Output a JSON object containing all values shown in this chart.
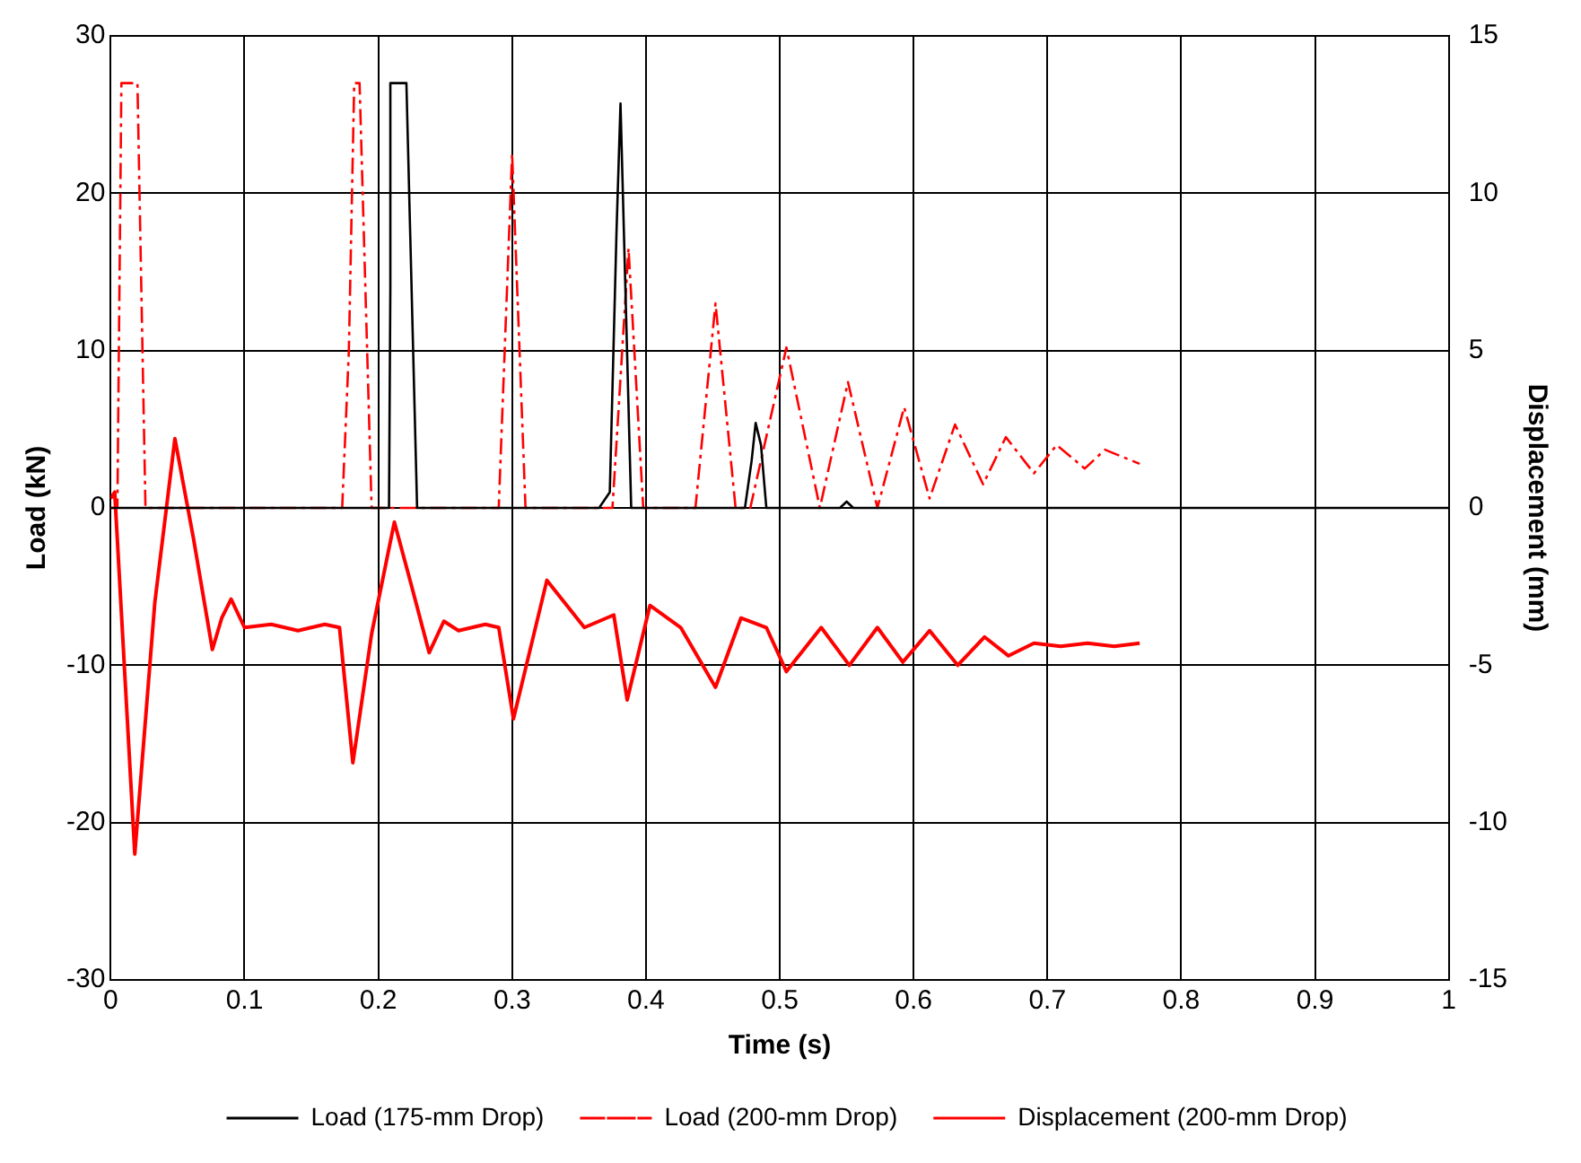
{
  "chart_data": {
    "type": "line",
    "xlabel": "Time (s)",
    "ylabel": "Load (kN)",
    "y2label": "Displacement (mm)",
    "xlim": [
      0,
      1
    ],
    "xticks": [
      0,
      0.1,
      0.2,
      0.3,
      0.4,
      0.5,
      0.6,
      0.7,
      0.8,
      0.9,
      1
    ],
    "ylim": [
      -30,
      30
    ],
    "yticks": [
      -30,
      -20,
      -10,
      0,
      10,
      20,
      30
    ],
    "y2lim": [
      -15,
      15
    ],
    "y2ticks": [
      -15,
      -10,
      -5,
      0,
      5,
      10,
      15
    ],
    "grid": true,
    "legend": "bottom",
    "marker": "none",
    "series": [
      {
        "name": "Load (175-mm Drop)",
        "color": "#000000",
        "line_style": "solid",
        "x": [
          0,
          0.1,
          0.2,
          0.208,
          0.209,
          0.209,
          0.211,
          0.221,
          0.229,
          0.3,
          0.365,
          0.373,
          0.378,
          0.378,
          0.381,
          0.389,
          0.45,
          0.474,
          0.479,
          0.482,
          0.486,
          0.49,
          0.545,
          0.55,
          0.555,
          0.7,
          1
        ],
        "values": [
          0,
          0,
          0,
          0,
          14,
          27,
          27,
          27,
          0,
          0,
          0,
          1,
          17.5,
          17.5,
          25.7,
          0,
          0,
          0,
          3,
          5.4,
          4,
          0,
          0,
          0.4,
          0,
          0,
          0
        ]
      },
      {
        "name": "Load (200-mm Drop)",
        "color": "#ff0000",
        "line_style": "dashed",
        "x": [
          0,
          0.005,
          0.008,
          0.02,
          0.026,
          0.1,
          0.173,
          0.178,
          0.182,
          0.186,
          0.195,
          0.25,
          0.29,
          0.3,
          0.31,
          0.36,
          0.375,
          0.387,
          0.398,
          0.437,
          0.452,
          0.467,
          0.478,
          0.505,
          0.53,
          0.551,
          0.573,
          0.593,
          0.612,
          0.631,
          0.652,
          0.669,
          0.69,
          0.707,
          0.728,
          0.743,
          0.769
        ],
        "values": [
          0,
          0,
          27,
          27,
          0,
          0,
          0,
          10,
          27,
          27,
          0,
          0,
          0,
          22.5,
          0,
          0,
          0,
          16.5,
          0,
          0,
          13,
          0,
          0,
          10.2,
          0,
          8,
          0,
          6.4,
          0.6,
          5.3,
          1.5,
          4.5,
          2.2,
          4,
          2.5,
          3.7,
          2.8
        ]
      },
      {
        "name": "Displacement (200-mm Drop)",
        "color": "#ff0000",
        "line_style": "solid",
        "axis": "y2",
        "x": [
          0,
          0.003,
          0.018,
          0.033,
          0.048,
          0.062,
          0.076,
          0.083,
          0.09,
          0.1,
          0.12,
          0.14,
          0.16,
          0.171,
          0.181,
          0.195,
          0.212,
          0.225,
          0.238,
          0.249,
          0.26,
          0.28,
          0.29,
          0.301,
          0.326,
          0.354,
          0.376,
          0.386,
          0.403,
          0.426,
          0.452,
          0.471,
          0.49,
          0.505,
          0.531,
          0.552,
          0.573,
          0.592,
          0.612,
          0.633,
          0.653,
          0.671,
          0.69,
          0.71,
          0.73,
          0.75,
          0.769
        ],
        "values": [
          0.3,
          0.5,
          -11,
          -3,
          2.2,
          -1,
          -4.5,
          -3.5,
          -2.9,
          -3.8,
          -3.7,
          -3.9,
          -3.7,
          -3.8,
          -8.1,
          -4,
          -0.45,
          -2.5,
          -4.6,
          -3.6,
          -3.9,
          -3.7,
          -3.8,
          -6.7,
          -2.3,
          -3.8,
          -3.4,
          -6.1,
          -3.1,
          -3.8,
          -5.7,
          -3.5,
          -3.8,
          -5.2,
          -3.8,
          -5,
          -3.8,
          -4.9,
          -3.9,
          -5,
          -4.1,
          -4.7,
          -4.3,
          -4.4,
          -4.3,
          -4.4,
          -4.3
        ]
      }
    ]
  }
}
